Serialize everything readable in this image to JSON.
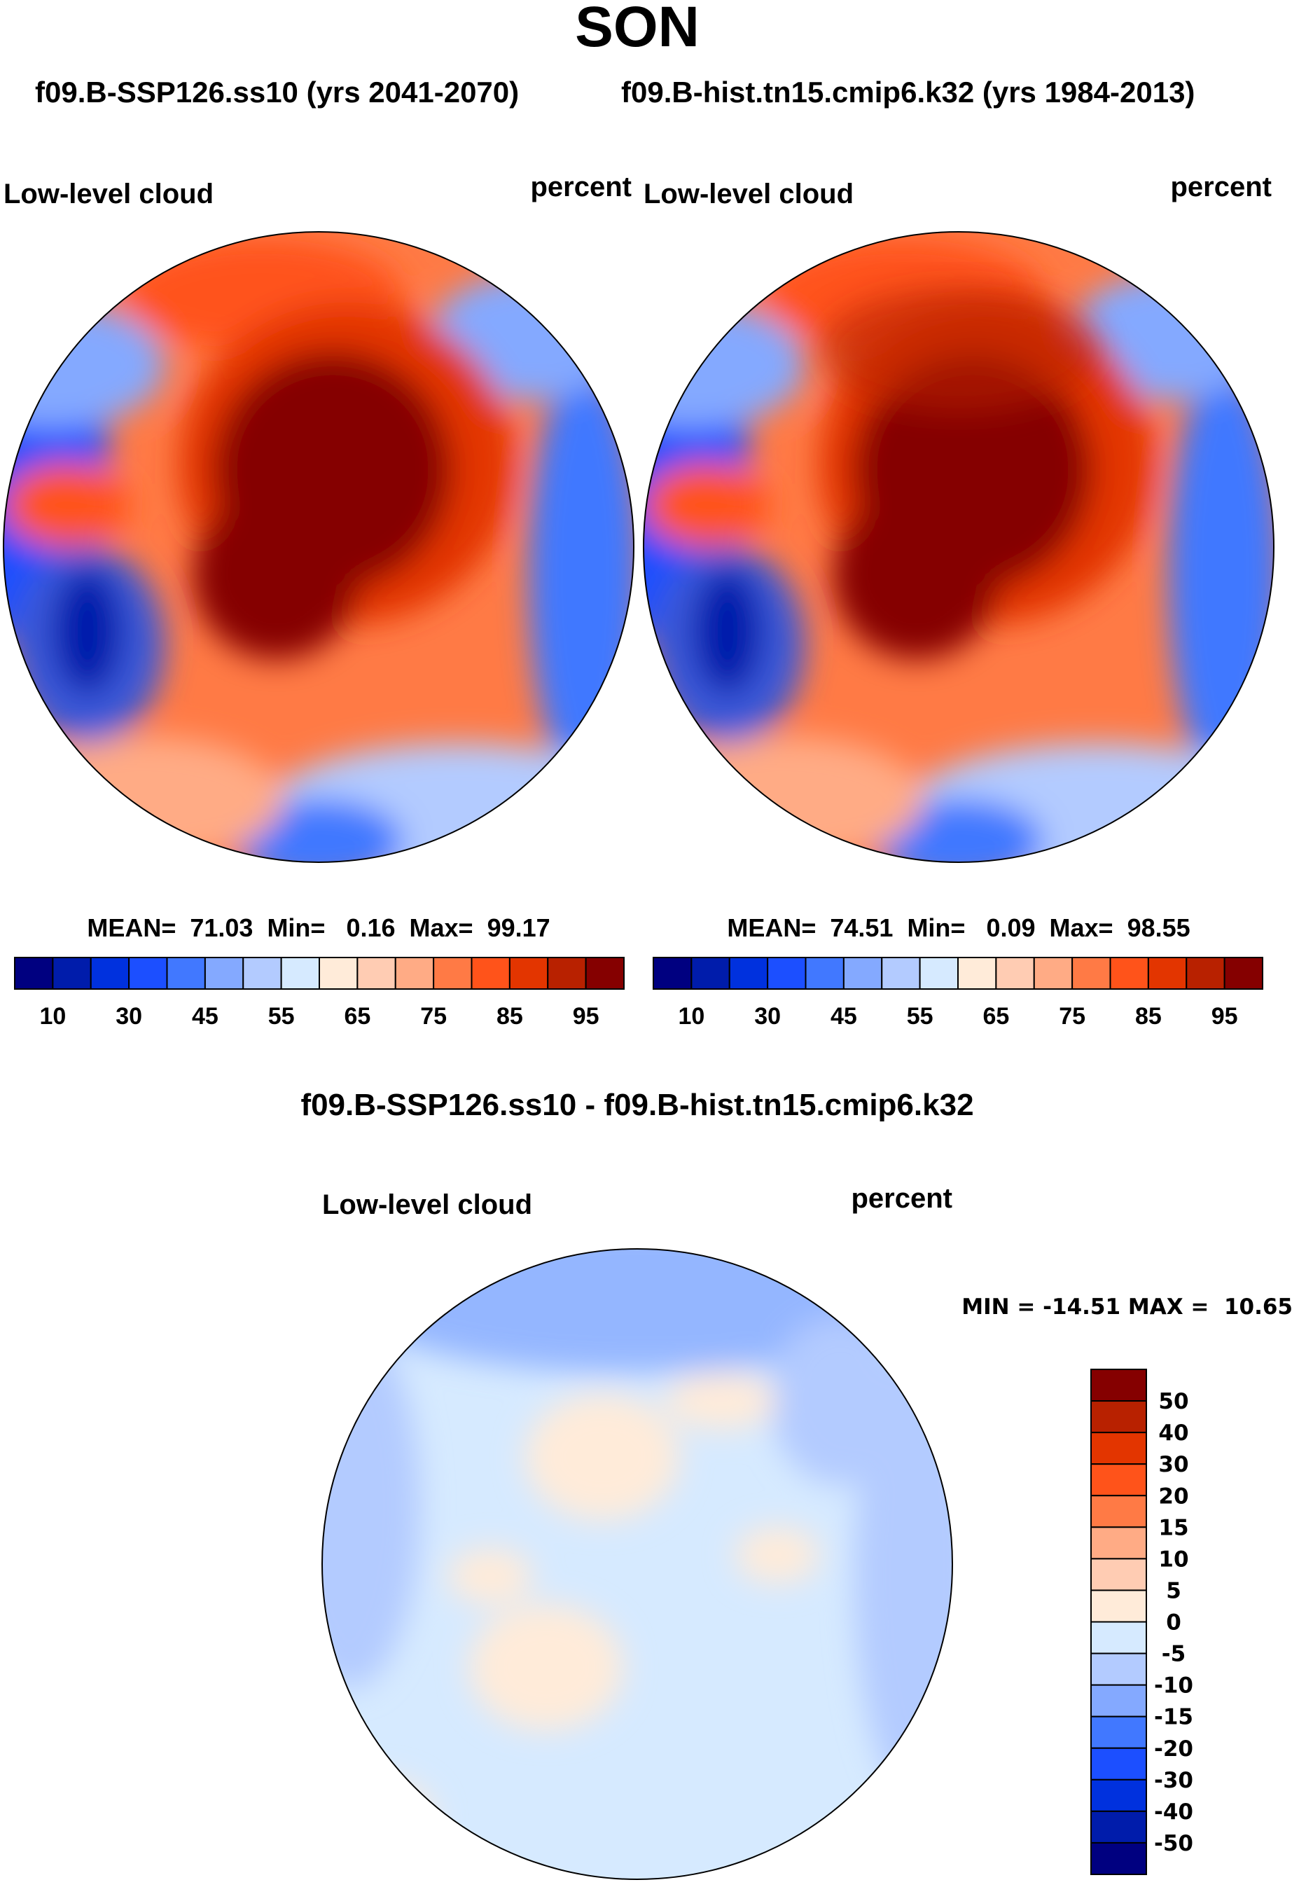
{
  "title": "SON",
  "panels": [
    {
      "case_label": "f09.B-SSP126.ss10 (yrs 2041-2070)",
      "variable": "Low-level cloud",
      "units": "percent",
      "stats": "MEAN=  71.03  Min=   0.16  Max=  99.17"
    },
    {
      "case_label": "f09.B-hist.tn15.cmip6.k32 (yrs 1984-2013)",
      "variable": "Low-level cloud",
      "units": "percent",
      "stats": "MEAN=  74.51  Min=   0.09  Max=  98.55"
    }
  ],
  "diff": {
    "title": "f09.B-SSP126.ss10 - f09.B-hist.tn15.cmip6.k32",
    "variable": "Low-level cloud",
    "units": "percent",
    "stats": "MIN = -14.51 MAX =  10.65"
  },
  "palette": [
    "#000080",
    "#001CAB",
    "#0031DE",
    "#1C4FFF",
    "#4178FF",
    "#84A9FF",
    "#B3CBFF",
    "#D6EAFF",
    "#FFEBD9",
    "#FFCCB3",
    "#FFAB85",
    "#FF7A45",
    "#FF531A",
    "#E33500",
    "#B82100",
    "#850000"
  ],
  "chart_data": [
    {
      "type": "heatmap",
      "title": "f09.B-SSP126.ss10 (yrs 2041-2070)",
      "projection": "north polar stereographic",
      "variable": "Low-level cloud",
      "units": "percent",
      "mean": 71.03,
      "min": 0.16,
      "max": 99.17,
      "colorbar_ticks": [
        "10",
        "30",
        "45",
        "55",
        "65",
        "75",
        "85",
        "95"
      ]
    },
    {
      "type": "heatmap",
      "title": "f09.B-hist.tn15.cmip6.k32 (yrs 1984-2013)",
      "projection": "north polar stereographic",
      "variable": "Low-level cloud",
      "units": "percent",
      "mean": 74.51,
      "min": 0.09,
      "max": 98.55,
      "colorbar_ticks": [
        "10",
        "30",
        "45",
        "55",
        "65",
        "75",
        "85",
        "95"
      ]
    },
    {
      "type": "heatmap",
      "title": "f09.B-SSP126.ss10 - f09.B-hist.tn15.cmip6.k32",
      "projection": "north polar stereographic",
      "variable": "Low-level cloud",
      "units": "percent",
      "min": -14.51,
      "max": 10.65,
      "colorbar_ticks": [
        "50",
        "40",
        "30",
        "20",
        "15",
        "10",
        "5",
        "0",
        "-5",
        "-10",
        "-15",
        "-20",
        "-30",
        "-40",
        "-50"
      ]
    }
  ]
}
